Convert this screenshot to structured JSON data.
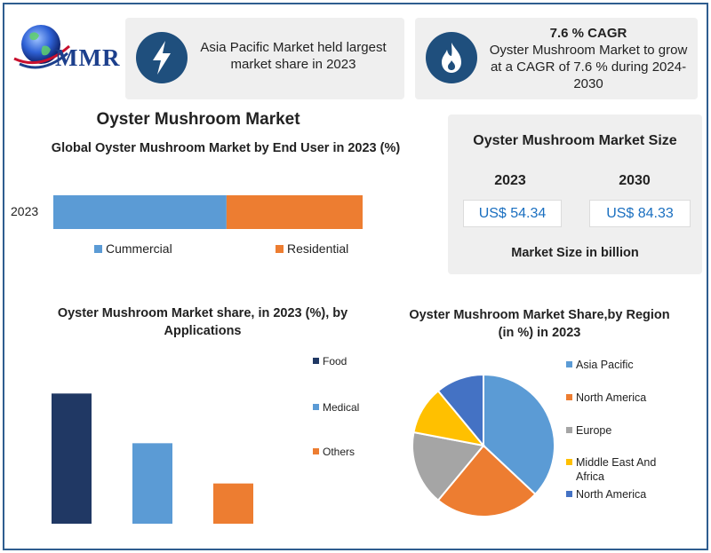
{
  "logo": {
    "text": "MMR",
    "icon": "globe-icon"
  },
  "info_boxes": [
    {
      "icon": "lightning-bolt-icon",
      "text": "Asia Pacific Market held largest market share in 2023"
    },
    {
      "icon": "flame-icon",
      "title": "7.6 % CAGR",
      "text": "Oyster Mushroom Market to grow at a CAGR of 7.6 % during 2024-2030"
    }
  ],
  "main_title": "Oyster Mushroom Market",
  "market_size": {
    "title": "Oyster Mushroom Market Size",
    "years": [
      "2023",
      "2030"
    ],
    "values": [
      "US$ 54.34",
      "US$ 84.33"
    ],
    "note": "Market Size in billion"
  },
  "colors": {
    "blue_light": "#5b9bd5",
    "orange": "#ed7d31",
    "navy": "#203864",
    "gray": "#a5a5a5",
    "gold": "#ffc000",
    "blue_dark": "#4472c4",
    "icon_bg": "#1f4f7d"
  },
  "chart_data": [
    {
      "type": "bar",
      "orientation": "horizontal-stacked",
      "title": "Global Oyster Mushroom Market  by End User in 2023 (%)",
      "categories": [
        "2023"
      ],
      "series": [
        {
          "name": "Cummercial",
          "values": [
            56
          ],
          "color": "#5b9bd5"
        },
        {
          "name": "Residential",
          "values": [
            44
          ],
          "color": "#ed7d31"
        }
      ],
      "xlim": [
        0,
        100
      ],
      "legend": "bottom"
    },
    {
      "type": "bar",
      "title": "Oyster Mushroom Market share, in 2023 (%), by Applications",
      "categories": [
        "Food",
        "Medical",
        "Others"
      ],
      "values": [
        55,
        34,
        17
      ],
      "colors": [
        "#203864",
        "#5b9bd5",
        "#ed7d31"
      ],
      "ylim": [
        0,
        60
      ],
      "legend": "right"
    },
    {
      "type": "pie",
      "title": "Oyster Mushroom Market Share,by Region (in %) in 2023",
      "labels": [
        "Asia Pacific",
        "North America",
        "Europe",
        "Middle East And Africa",
        "North America"
      ],
      "values": [
        37,
        24,
        17,
        11,
        11
      ],
      "colors": [
        "#5b9bd5",
        "#ed7d31",
        "#a5a5a5",
        "#ffc000",
        "#4472c4"
      ],
      "legend": "right"
    }
  ]
}
